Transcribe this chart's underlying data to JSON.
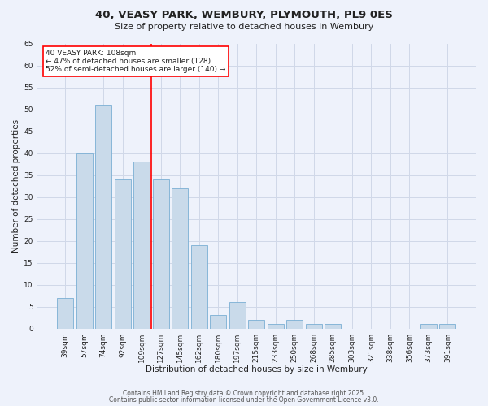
{
  "title_line1": "40, VEASY PARK, WEMBURY, PLYMOUTH, PL9 0ES",
  "title_line2": "Size of property relative to detached houses in Wembury",
  "xlabel": "Distribution of detached houses by size in Wembury",
  "ylabel": "Number of detached properties",
  "categories": [
    "39sqm",
    "57sqm",
    "74sqm",
    "92sqm",
    "109sqm",
    "127sqm",
    "145sqm",
    "162sqm",
    "180sqm",
    "197sqm",
    "215sqm",
    "233sqm",
    "250sqm",
    "268sqm",
    "285sqm",
    "303sqm",
    "321sqm",
    "338sqm",
    "356sqm",
    "373sqm",
    "391sqm"
  ],
  "values": [
    7,
    40,
    51,
    34,
    38,
    34,
    32,
    19,
    3,
    6,
    2,
    1,
    2,
    1,
    1,
    0,
    0,
    0,
    0,
    1,
    1
  ],
  "bar_color": "#c9daea",
  "bar_edge_color": "#7aafd4",
  "highlight_index": 4,
  "annotation_text": "40 VEASY PARK: 108sqm\n← 47% of detached houses are smaller (128)\n52% of semi-detached houses are larger (140) →",
  "annotation_box_color": "white",
  "annotation_box_edge": "red",
  "ylim": [
    0,
    65
  ],
  "yticks": [
    0,
    5,
    10,
    15,
    20,
    25,
    30,
    35,
    40,
    45,
    50,
    55,
    60,
    65
  ],
  "grid_color": "#d0d8e8",
  "background_color": "#eef2fb",
  "footer_line1": "Contains HM Land Registry data © Crown copyright and database right 2025.",
  "footer_line2": "Contains public sector information licensed under the Open Government Licence v3.0.",
  "font_color": "#222222",
  "title_fontsize": 9.5,
  "subtitle_fontsize": 8,
  "axis_label_fontsize": 7.5,
  "tick_fontsize": 6.5,
  "annotation_fontsize": 6.5,
  "footer_fontsize": 5.5
}
